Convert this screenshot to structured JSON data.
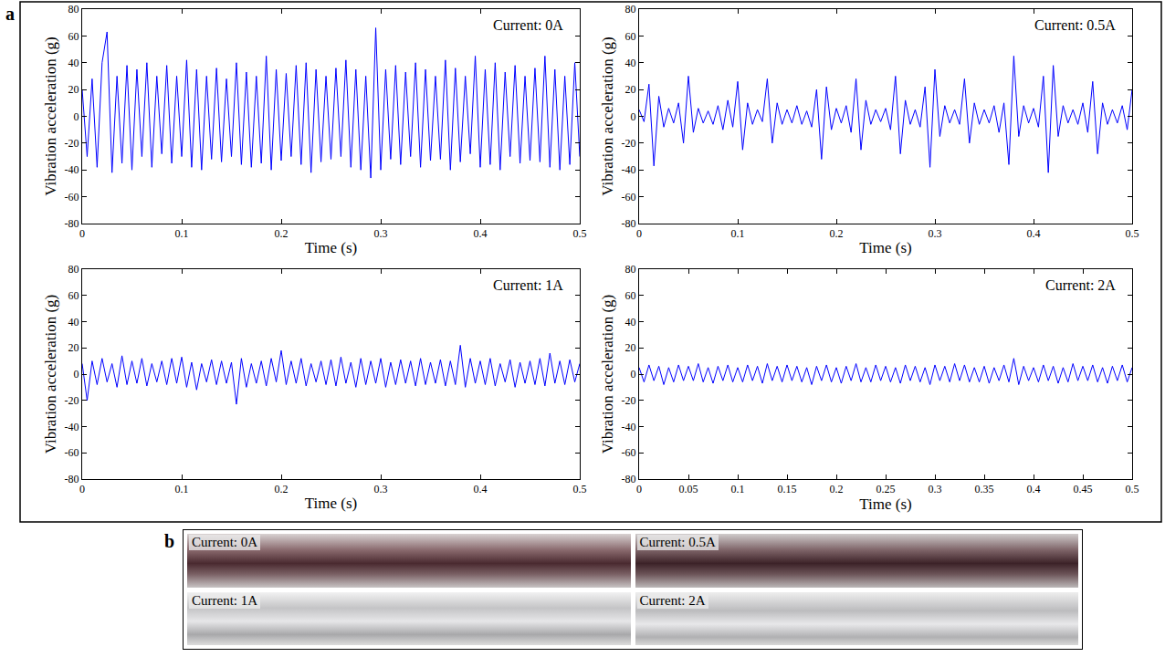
{
  "figure_labels": [
    "a",
    "b"
  ],
  "photos": [
    "Current: 0A",
    "Current: 0.5A",
    "Current: 1A",
    "Current: 2A"
  ],
  "chart_data": [
    {
      "type": "line",
      "annotation": "Current: 0A",
      "x_label": "Time (s)",
      "y_label": "Vibration acceleration (g)",
      "color": "#0000ff",
      "grid": false,
      "xlim": [
        0,
        0.5
      ],
      "xticks": [
        0,
        0.1,
        0.2,
        0.3,
        0.4,
        0.5
      ],
      "ylim": [
        -80,
        80
      ],
      "yticks": [
        -80,
        -60,
        -40,
        -20,
        0,
        20,
        40,
        60,
        80
      ],
      "x": [
        0,
        0.005,
        0.01,
        0.015,
        0.02,
        0.025,
        0.03,
        0.035,
        0.04,
        0.045,
        0.05,
        0.055,
        0.06,
        0.065,
        0.07,
        0.075,
        0.08,
        0.085,
        0.09,
        0.095,
        0.1,
        0.105,
        0.11,
        0.115,
        0.12,
        0.125,
        0.13,
        0.135,
        0.14,
        0.145,
        0.15,
        0.155,
        0.16,
        0.165,
        0.17,
        0.175,
        0.18,
        0.185,
        0.19,
        0.195,
        0.2,
        0.205,
        0.21,
        0.215,
        0.22,
        0.225,
        0.23,
        0.235,
        0.24,
        0.245,
        0.25,
        0.255,
        0.26,
        0.265,
        0.27,
        0.275,
        0.28,
        0.285,
        0.29,
        0.295,
        0.3,
        0.305,
        0.31,
        0.315,
        0.32,
        0.325,
        0.33,
        0.335,
        0.34,
        0.345,
        0.35,
        0.355,
        0.36,
        0.365,
        0.37,
        0.375,
        0.38,
        0.385,
        0.39,
        0.395,
        0.4,
        0.405,
        0.41,
        0.415,
        0.42,
        0.425,
        0.43,
        0.435,
        0.44,
        0.445,
        0.45,
        0.455,
        0.46,
        0.465,
        0.47,
        0.475,
        0.48,
        0.485,
        0.49,
        0.495,
        0.5
      ],
      "values": [
        20,
        -30,
        28,
        -38,
        40,
        63,
        -42,
        30,
        -35,
        38,
        -40,
        35,
        -30,
        40,
        -38,
        30,
        -28,
        38,
        -35,
        30,
        -30,
        42,
        -38,
        35,
        -40,
        30,
        -32,
        36,
        -34,
        28,
        -30,
        40,
        -36,
        33,
        -38,
        30,
        -35,
        45,
        -40,
        35,
        -33,
        32,
        -30,
        38,
        -36,
        40,
        -42,
        35,
        -34,
        30,
        -32,
        36,
        -30,
        42,
        -38,
        35,
        -40,
        30,
        -46,
        66,
        -40,
        35,
        -32,
        38,
        -36,
        33,
        -30,
        40,
        -38,
        35,
        -33,
        30,
        -32,
        42,
        -40,
        36,
        -34,
        30,
        -28,
        45,
        -38,
        35,
        -36,
        40,
        -40,
        33,
        -30,
        38,
        -35,
        30,
        -33,
        36,
        -34,
        45,
        -38,
        35,
        -40,
        30,
        -36,
        40,
        -30
      ]
    },
    {
      "type": "line",
      "annotation": "Current: 0.5A",
      "x_label": "Time (s)",
      "y_label": "Vibration acceleration (g)",
      "color": "#0000ff",
      "grid": false,
      "xlim": [
        0,
        0.5
      ],
      "xticks": [
        0,
        0.1,
        0.2,
        0.3,
        0.4,
        0.5
      ],
      "ylim": [
        -80,
        80
      ],
      "yticks": [
        -80,
        -60,
        -40,
        -20,
        0,
        20,
        40,
        60,
        80
      ],
      "x": [
        0,
        0.005,
        0.01,
        0.015,
        0.02,
        0.025,
        0.03,
        0.035,
        0.04,
        0.045,
        0.05,
        0.055,
        0.06,
        0.065,
        0.07,
        0.075,
        0.08,
        0.085,
        0.09,
        0.095,
        0.1,
        0.105,
        0.11,
        0.115,
        0.12,
        0.125,
        0.13,
        0.135,
        0.14,
        0.145,
        0.15,
        0.155,
        0.16,
        0.165,
        0.17,
        0.175,
        0.18,
        0.185,
        0.19,
        0.195,
        0.2,
        0.205,
        0.21,
        0.215,
        0.22,
        0.225,
        0.23,
        0.235,
        0.24,
        0.245,
        0.25,
        0.255,
        0.26,
        0.265,
        0.27,
        0.275,
        0.28,
        0.285,
        0.29,
        0.295,
        0.3,
        0.305,
        0.31,
        0.315,
        0.32,
        0.325,
        0.33,
        0.335,
        0.34,
        0.345,
        0.35,
        0.355,
        0.36,
        0.365,
        0.37,
        0.375,
        0.38,
        0.385,
        0.39,
        0.395,
        0.4,
        0.405,
        0.41,
        0.415,
        0.42,
        0.425,
        0.43,
        0.435,
        0.44,
        0.445,
        0.45,
        0.455,
        0.46,
        0.465,
        0.47,
        0.475,
        0.48,
        0.485,
        0.49,
        0.495,
        0.5
      ],
      "values": [
        5,
        -4,
        24,
        -37,
        15,
        -8,
        6,
        -5,
        10,
        -20,
        30,
        -12,
        6,
        -5,
        4,
        -6,
        8,
        -10,
        12,
        -8,
        26,
        -25,
        10,
        -6,
        5,
        -4,
        28,
        -20,
        10,
        -6,
        5,
        -5,
        8,
        -6,
        4,
        -8,
        20,
        -32,
        22,
        -10,
        6,
        -5,
        8,
        -12,
        28,
        -25,
        12,
        -6,
        5,
        -4,
        6,
        -10,
        30,
        -28,
        12,
        -6,
        5,
        -8,
        22,
        -38,
        35,
        -15,
        8,
        -5,
        5,
        -6,
        28,
        -20,
        10,
        -6,
        5,
        -5,
        8,
        -12,
        10,
        -36,
        45,
        -15,
        8,
        -5,
        6,
        -8,
        30,
        -42,
        38,
        -15,
        8,
        -5,
        5,
        -6,
        10,
        -12,
        26,
        -28,
        10,
        -6,
        5,
        -5,
        8,
        -10,
        20
      ]
    },
    {
      "type": "line",
      "annotation": "Current: 1A",
      "x_label": "Time (s)",
      "y_label": "Vibration acceleration (g)",
      "color": "#0000ff",
      "grid": false,
      "xlim": [
        0,
        0.5
      ],
      "xticks": [
        0,
        0.1,
        0.2,
        0.3,
        0.4,
        0.5
      ],
      "ylim": [
        -80,
        80
      ],
      "yticks": [
        -80,
        -60,
        -40,
        -20,
        0,
        20,
        40,
        60,
        80
      ],
      "x": [
        0,
        0.005,
        0.01,
        0.015,
        0.02,
        0.025,
        0.03,
        0.035,
        0.04,
        0.045,
        0.05,
        0.055,
        0.06,
        0.065,
        0.07,
        0.075,
        0.08,
        0.085,
        0.09,
        0.095,
        0.1,
        0.105,
        0.11,
        0.115,
        0.12,
        0.125,
        0.13,
        0.135,
        0.14,
        0.145,
        0.15,
        0.155,
        0.16,
        0.165,
        0.17,
        0.175,
        0.18,
        0.185,
        0.19,
        0.195,
        0.2,
        0.205,
        0.21,
        0.215,
        0.22,
        0.225,
        0.23,
        0.235,
        0.24,
        0.245,
        0.25,
        0.255,
        0.26,
        0.265,
        0.27,
        0.275,
        0.28,
        0.285,
        0.29,
        0.295,
        0.3,
        0.305,
        0.31,
        0.315,
        0.32,
        0.325,
        0.33,
        0.335,
        0.34,
        0.345,
        0.35,
        0.355,
        0.36,
        0.365,
        0.37,
        0.375,
        0.38,
        0.385,
        0.39,
        0.395,
        0.4,
        0.405,
        0.41,
        0.415,
        0.42,
        0.425,
        0.43,
        0.435,
        0.44,
        0.445,
        0.45,
        0.455,
        0.46,
        0.465,
        0.47,
        0.475,
        0.48,
        0.485,
        0.49,
        0.495,
        0.5
      ],
      "values": [
        8,
        -20,
        10,
        -8,
        12,
        -6,
        8,
        -10,
        14,
        -8,
        10,
        -7,
        12,
        -9,
        8,
        -6,
        10,
        -8,
        12,
        -7,
        13,
        -10,
        9,
        -12,
        8,
        -6,
        11,
        -8,
        10,
        -7,
        9,
        -23,
        12,
        -10,
        8,
        -7,
        10,
        -9,
        12,
        -6,
        18,
        -8,
        10,
        -7,
        12,
        -9,
        8,
        -6,
        10,
        -8,
        11,
        -9,
        13,
        -7,
        9,
        -10,
        12,
        -8,
        10,
        -7,
        12,
        -10,
        9,
        -8,
        11,
        -7,
        10,
        -9,
        12,
        -8,
        9,
        -7,
        11,
        -9,
        10,
        -8,
        22,
        -10,
        12,
        -7,
        10,
        -8,
        12,
        -9,
        8,
        -6,
        11,
        -10,
        9,
        -7,
        10,
        -8,
        12,
        -9,
        16,
        -7,
        10,
        -8,
        11,
        -6,
        8
      ]
    },
    {
      "type": "line",
      "annotation": "Current: 2A",
      "x_label": "Time (s)",
      "y_label": "Vibration acceleration (g)",
      "color": "#0000ff",
      "grid": false,
      "xlim": [
        0,
        0.5
      ],
      "xticks": [
        0,
        0.05,
        0.1,
        0.15,
        0.2,
        0.25,
        0.3,
        0.35,
        0.4,
        0.45,
        0.5
      ],
      "ylim": [
        -80,
        80
      ],
      "yticks": [
        -80,
        -60,
        -40,
        -20,
        0,
        20,
        40,
        60,
        80
      ],
      "x": [
        0,
        0.005,
        0.01,
        0.015,
        0.02,
        0.025,
        0.03,
        0.035,
        0.04,
        0.045,
        0.05,
        0.055,
        0.06,
        0.065,
        0.07,
        0.075,
        0.08,
        0.085,
        0.09,
        0.095,
        0.1,
        0.105,
        0.11,
        0.115,
        0.12,
        0.125,
        0.13,
        0.135,
        0.14,
        0.145,
        0.15,
        0.155,
        0.16,
        0.165,
        0.17,
        0.175,
        0.18,
        0.185,
        0.19,
        0.195,
        0.2,
        0.205,
        0.21,
        0.215,
        0.22,
        0.225,
        0.23,
        0.235,
        0.24,
        0.245,
        0.25,
        0.255,
        0.26,
        0.265,
        0.27,
        0.275,
        0.28,
        0.285,
        0.29,
        0.295,
        0.3,
        0.305,
        0.31,
        0.315,
        0.32,
        0.325,
        0.33,
        0.335,
        0.34,
        0.345,
        0.35,
        0.355,
        0.36,
        0.365,
        0.37,
        0.375,
        0.38,
        0.385,
        0.39,
        0.395,
        0.4,
        0.405,
        0.41,
        0.415,
        0.42,
        0.425,
        0.43,
        0.435,
        0.44,
        0.445,
        0.45,
        0.455,
        0.46,
        0.465,
        0.47,
        0.475,
        0.48,
        0.485,
        0.49,
        0.495,
        0.5
      ],
      "values": [
        5,
        -6,
        7,
        -5,
        6,
        -8,
        5,
        -6,
        7,
        -5,
        6,
        -5,
        8,
        -6,
        5,
        -7,
        6,
        -5,
        7,
        -6,
        5,
        -6,
        7,
        -5,
        6,
        -7,
        8,
        -5,
        6,
        -6,
        7,
        -5,
        6,
        -6,
        5,
        -8,
        6,
        -5,
        7,
        -6,
        5,
        -7,
        6,
        -5,
        8,
        -6,
        5,
        -6,
        7,
        -5,
        6,
        -6,
        5,
        -7,
        7,
        -5,
        6,
        -6,
        5,
        -8,
        7,
        -5,
        6,
        -6,
        8,
        -5,
        7,
        -6,
        5,
        -6,
        6,
        -7,
        5,
        -5,
        7,
        -6,
        12,
        -8,
        6,
        -5,
        5,
        -6,
        7,
        -5,
        6,
        -7,
        5,
        -6,
        8,
        -5,
        6,
        -5,
        7,
        -6,
        5,
        -7,
        6,
        -5,
        7,
        -6,
        5
      ]
    }
  ]
}
